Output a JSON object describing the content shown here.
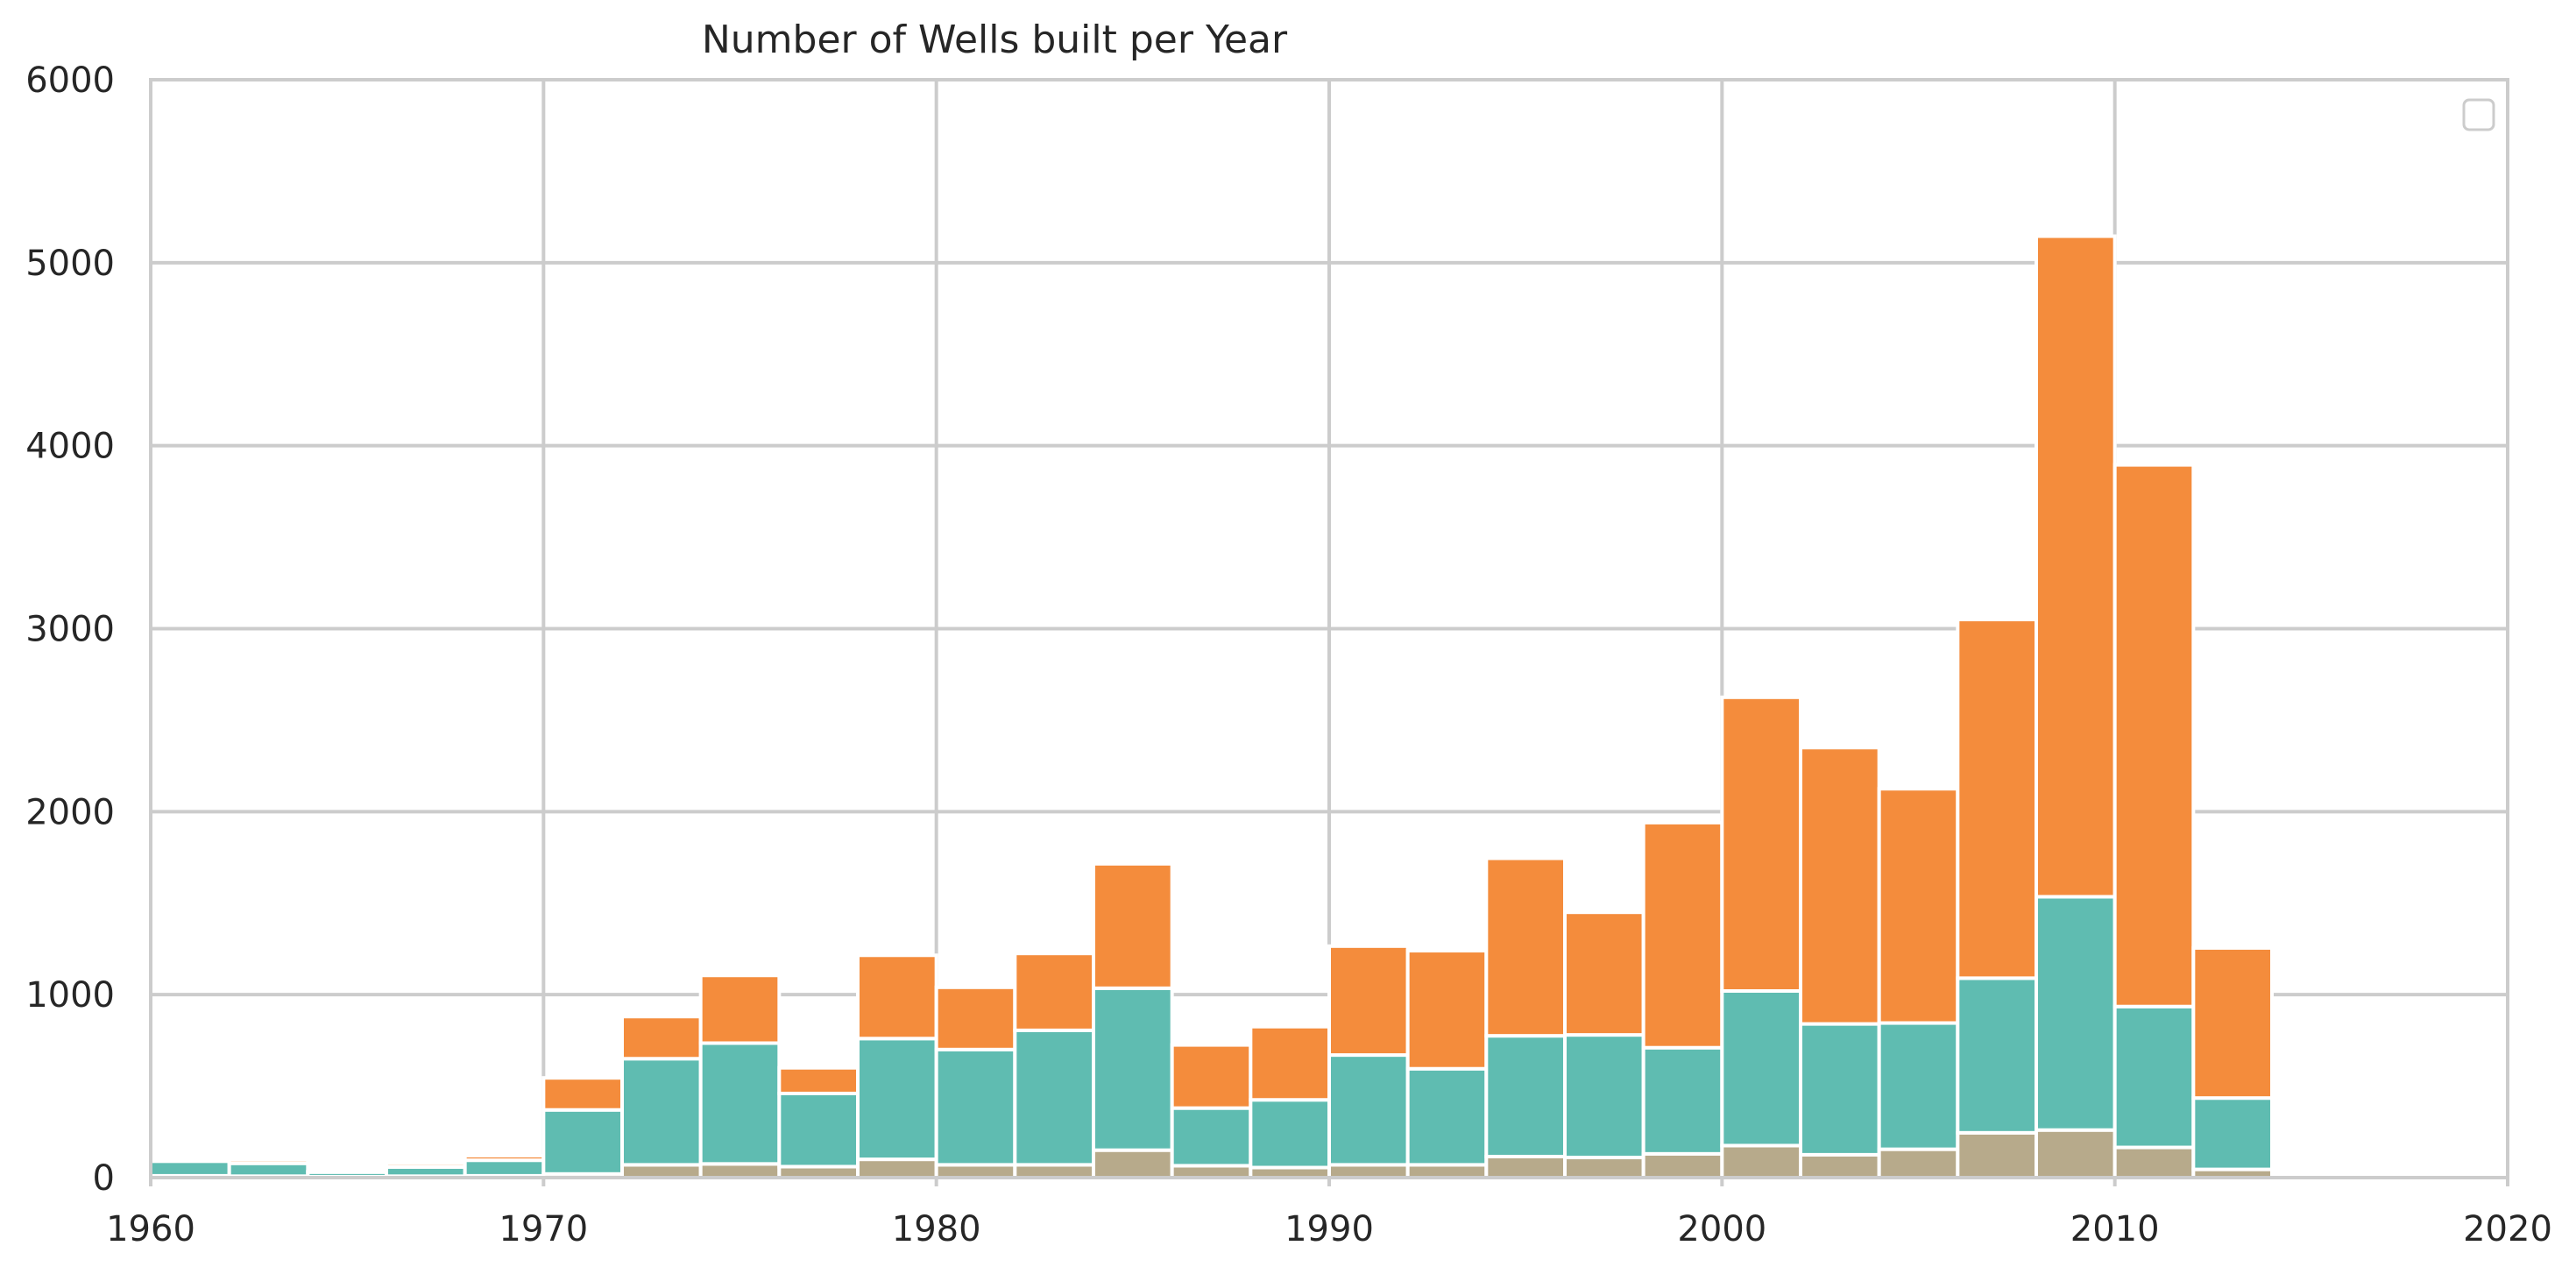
{
  "chart_data": {
    "type": "bar",
    "stacked": true,
    "title": "Number of Wells built per Year",
    "xlabel": "",
    "ylabel": "",
    "xlim": [
      1960,
      2020
    ],
    "ylim": [
      0,
      6000
    ],
    "x_ticks": [
      "1960",
      "1970",
      "1980",
      "1990",
      "2000",
      "2010",
      "2020"
    ],
    "y_ticks": [
      "0",
      "1000",
      "2000",
      "3000",
      "4000",
      "5000",
      "6000"
    ],
    "grid": true,
    "legend": {
      "placement": "top-right",
      "entries": []
    },
    "bin_edges": [
      1960,
      1962,
      1964,
      1966,
      1968,
      1970,
      1972,
      1974,
      1976,
      1978,
      1980,
      1982,
      1984,
      1986,
      1988,
      1990,
      1992,
      1994,
      1996,
      1998,
      2000,
      2002,
      2004,
      2006,
      2008,
      2010,
      2012,
      2014
    ],
    "series": [
      {
        "color": "#b7aa8b",
        "values": [
          10,
          8,
          5,
          8,
          10,
          20,
          70,
          75,
          60,
          100,
          70,
          70,
          150,
          65,
          55,
          70,
          70,
          115,
          110,
          130,
          175,
          125,
          155,
          245,
          260,
          165,
          45
        ]
      },
      {
        "color": "#5fbcb1",
        "values": [
          80,
          70,
          25,
          50,
          85,
          350,
          580,
          660,
          400,
          660,
          630,
          735,
          885,
          315,
          370,
          600,
          525,
          660,
          670,
          580,
          845,
          715,
          690,
          845,
          1275,
          770,
          390
        ]
      },
      {
        "color": "#f48c3c",
        "values": [
          15,
          20,
          3,
          20,
          25,
          175,
          230,
          370,
          140,
          455,
          340,
          420,
          680,
          345,
          400,
          595,
          645,
          970,
          670,
          1230,
          1605,
          1510,
          1280,
          1960,
          3610,
          2960,
          820
        ]
      }
    ]
  }
}
